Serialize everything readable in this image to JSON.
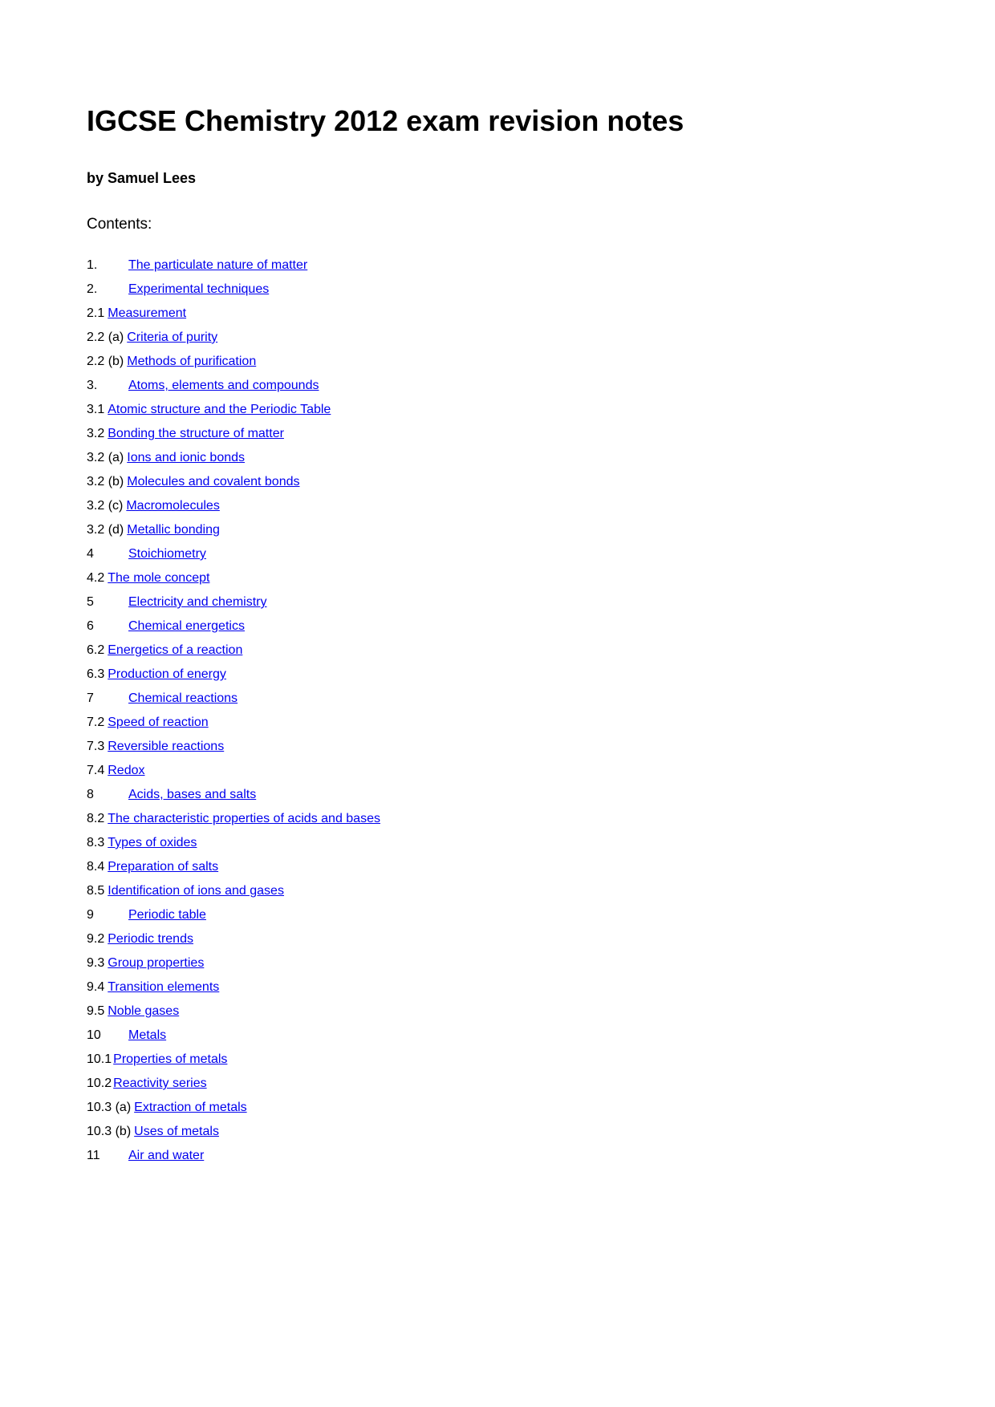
{
  "title": "IGCSE Chemistry 2012 exam revision notes",
  "byline": "by Samuel Lees",
  "contents_label": "Contents:",
  "link_color": "#0000ee",
  "text_color": "#000000",
  "background_color": "#ffffff",
  "toc": [
    {
      "number": "1.",
      "label": "The particulate nature of matter",
      "number_width": "normal"
    },
    {
      "number": "2.",
      "label": "Experimental techniques",
      "number_width": "normal"
    },
    {
      "number": "2.1",
      "label": "Measurement",
      "number_width": "tight"
    },
    {
      "number": "2.2 (a)",
      "label": "Criteria of purity",
      "number_width": "tight"
    },
    {
      "number": "2.2 (b)",
      "label": "Methods of purification",
      "number_width": "tight"
    },
    {
      "number": "3.",
      "label": "Atoms, elements and compounds",
      "number_width": "normal"
    },
    {
      "number": "3.1",
      "label": "Atomic structure and the Periodic Table",
      "number_width": "tight"
    },
    {
      "number": "3.2",
      "label": "Bonding the structure of matter",
      "number_width": "tight"
    },
    {
      "number": "3.2  (a)",
      "label": "Ions and ionic bonds",
      "number_width": "tight"
    },
    {
      "number": "3.2 (b)",
      "label": "Molecules and covalent bonds",
      "number_width": "tight"
    },
    {
      "number": "3.2 (c)",
      "label": "Macromolecules",
      "number_width": "tight"
    },
    {
      "number": "3.2 (d)",
      "label": "Metallic bonding",
      "number_width": "tight"
    },
    {
      "number": "4",
      "label": "Stoichiometry",
      "number_width": "normal"
    },
    {
      "number": "4.2",
      "label": "The mole concept",
      "number_width": "tight"
    },
    {
      "number": "5",
      "label": "Electricity and chemistry",
      "number_width": "normal"
    },
    {
      "number": "6",
      "label": "Chemical energetics",
      "number_width": "normal"
    },
    {
      "number": "6.2",
      "label": "Energetics of a reaction",
      "number_width": "tight"
    },
    {
      "number": "6.3",
      "label": "Production of energy",
      "number_width": "tight"
    },
    {
      "number": "7",
      "label": "Chemical reactions",
      "number_width": "normal"
    },
    {
      "number": "7.2",
      "label": "Speed of reaction",
      "number_width": "tight"
    },
    {
      "number": "7.3",
      "label": "Reversible reactions",
      "number_width": "tight"
    },
    {
      "number": "7.4",
      "label": "Redox",
      "number_width": "tight"
    },
    {
      "number": "8",
      "label": "Acids, bases and salts",
      "number_width": "normal"
    },
    {
      "number": "8.2",
      "label": "The characteristic properties of acids and bases",
      "number_width": "tight"
    },
    {
      "number": "8.3",
      "label": "Types of oxides",
      "number_width": "tight"
    },
    {
      "number": "8.4",
      "label": "Preparation of salts",
      "number_width": "tight"
    },
    {
      "number": "8.5",
      "label": "Identification of ions and gases",
      "number_width": "tight"
    },
    {
      "number": "9",
      "label": "Periodic table",
      "number_width": "normal"
    },
    {
      "number": "9.2",
      "label": "Periodic trends",
      "number_width": "tight"
    },
    {
      "number": "9.3",
      "label": "Group properties",
      "number_width": "tight"
    },
    {
      "number": "9.4",
      "label": "Transition elements",
      "number_width": "tight"
    },
    {
      "number": "9.5",
      "label": "Noble gases",
      "number_width": "tight"
    },
    {
      "number": "10",
      "label": "Metals",
      "number_width": "normal"
    },
    {
      "number": "10.1",
      "label": "Properties of metals",
      "number_width": "tight2"
    },
    {
      "number": "10.2",
      "label": "Reactivity series",
      "number_width": "tight2"
    },
    {
      "number": "10.3 (a)",
      "label": "Extraction of metals",
      "number_width": "tight"
    },
    {
      "number": "10.3 (b)",
      "label": "Uses of metals",
      "number_width": "tight"
    },
    {
      "number": "11",
      "label": "Air and water",
      "number_width": "normal"
    }
  ]
}
